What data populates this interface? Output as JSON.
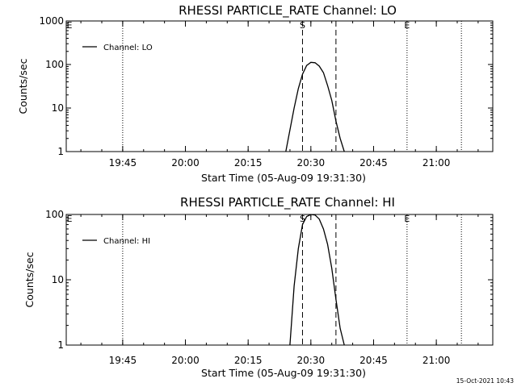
{
  "footer": {
    "timestamp": "15-Oct-2021 10:43"
  },
  "chart_data": [
    {
      "type": "line",
      "title": "RHESSI PARTICLE_RATE Channel: LO",
      "xlabel": "Start Time (05-Aug-09 19:31:30)",
      "ylabel": "Counts/sec",
      "y_scale": "log",
      "ylim": [
        1,
        1000
      ],
      "y_ticks": [
        1,
        10,
        100,
        1000
      ],
      "y_tick_labels": [
        "1",
        "10",
        "100",
        "1000"
      ],
      "xlim_minutes_after_start": [
        0,
        102
      ],
      "x_ticks": [
        "19:45",
        "20:00",
        "20:15",
        "20:30",
        "20:45",
        "21:00"
      ],
      "grid": false,
      "legend": {
        "position": "top-left",
        "entries": [
          "Channel: LO"
        ]
      },
      "series": [
        {
          "name": "Channel: LO",
          "x": [
            "20:24",
            "20:26",
            "20:27",
            "20:28",
            "20:29",
            "20:30",
            "20:31",
            "20:32",
            "20:33",
            "20:34",
            "20:35",
            "20:36",
            "20:37",
            "20:38"
          ],
          "y": [
            1,
            10,
            28,
            60,
            95,
            112,
            110,
            92,
            65,
            33,
            15,
            5,
            2,
            1
          ]
        }
      ],
      "markers": [
        {
          "time": "19:45",
          "label": "",
          "style": "dotted"
        },
        {
          "time": "20:28",
          "label": "S",
          "style": "dashed"
        },
        {
          "time": "20:36",
          "label": "",
          "style": "dashed"
        },
        {
          "time": "20:53",
          "label": "E",
          "style": "dotted"
        },
        {
          "time": "21:06",
          "label": "",
          "style": "dotted"
        }
      ],
      "corner_marker": "E"
    },
    {
      "type": "line",
      "title": "RHESSI PARTICLE_RATE Channel: HI",
      "xlabel": "Start Time (05-Aug-09 19:31:30)",
      "ylabel": "Counts/sec",
      "y_scale": "log",
      "ylim": [
        1,
        100
      ],
      "y_ticks": [
        1,
        10,
        100
      ],
      "y_tick_labels": [
        "1",
        "10",
        "100"
      ],
      "xlim_minutes_after_start": [
        0,
        102
      ],
      "x_ticks": [
        "19:45",
        "20:00",
        "20:15",
        "20:30",
        "20:45",
        "21:00"
      ],
      "grid": false,
      "legend": {
        "position": "top-left",
        "entries": [
          "Channel: HI"
        ]
      },
      "series": [
        {
          "name": "Channel: HI",
          "x": [
            "20:25",
            "20:26",
            "20:27",
            "20:28",
            "20:29",
            "20:30",
            "20:31",
            "20:32",
            "20:33",
            "20:34",
            "20:35",
            "20:36",
            "20:37",
            "20:38"
          ],
          "y": [
            1,
            8,
            30,
            70,
            93,
            100,
            98,
            85,
            60,
            35,
            15,
            5,
            1.8,
            1
          ]
        }
      ],
      "markers": [
        {
          "time": "19:45",
          "label": "",
          "style": "dotted"
        },
        {
          "time": "20:28",
          "label": "S",
          "style": "dashed"
        },
        {
          "time": "20:36",
          "label": "",
          "style": "dashed"
        },
        {
          "time": "20:53",
          "label": "E",
          "style": "dotted"
        },
        {
          "time": "21:06",
          "label": "",
          "style": "dotted"
        }
      ],
      "corner_marker": "E"
    }
  ]
}
